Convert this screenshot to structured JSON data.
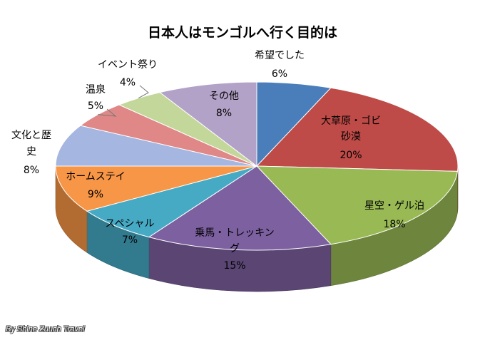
{
  "chart_data": {
    "type": "pie",
    "title": "日本人はモンゴルへ行く目的は",
    "slices": [
      {
        "label": "希望でした",
        "value": 6,
        "value_label": "6%",
        "color": "#4a7ebb"
      },
      {
        "label": "大草原・ゴビ砂漠",
        "value": 20,
        "value_label": "20%",
        "color": "#be4b48"
      },
      {
        "label": "星空・ゲル泊",
        "value": 18,
        "value_label": "18%",
        "color": "#98b954"
      },
      {
        "label": "乗馬・トレッキング",
        "value": 15,
        "value_label": "15%",
        "color": "#7d60a0"
      },
      {
        "label": "スペシャル",
        "value": 7,
        "value_label": "7%",
        "color": "#46aac5"
      },
      {
        "label": "ホームステイ",
        "value": 9,
        "value_label": "9%",
        "color": "#f79646"
      },
      {
        "label": "文化と歴史",
        "value": 8,
        "value_label": "8%",
        "color": "#a5b6e0"
      },
      {
        "label": "温泉",
        "value": 5,
        "value_label": "5%",
        "color": "#e08787"
      },
      {
        "label": "イベント祭り",
        "value": 4,
        "value_label": "4%",
        "color": "#c4d79b"
      },
      {
        "label": "その他",
        "value": 8,
        "value_label": "8%",
        "color": "#b3a2c7"
      }
    ]
  },
  "credit": "By Shine Zuuch Travel"
}
